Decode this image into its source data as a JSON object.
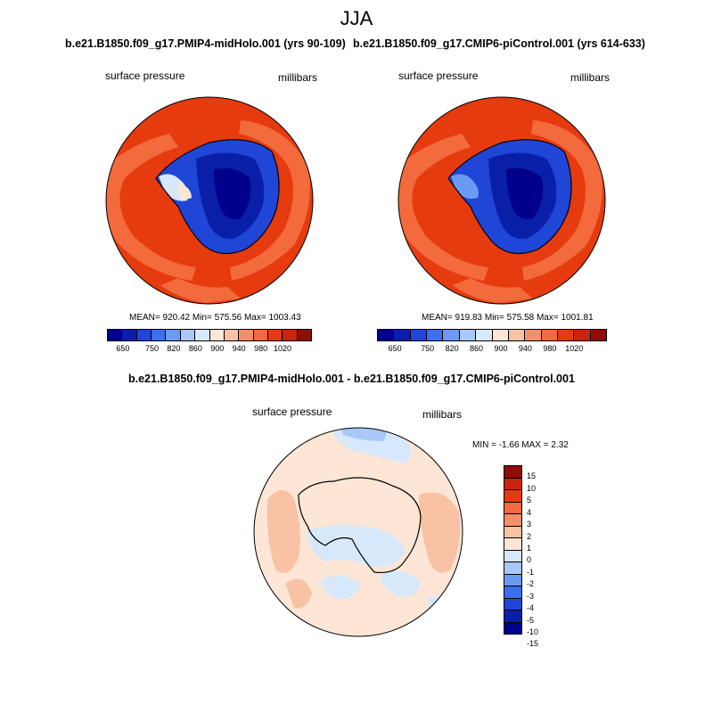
{
  "chart_data": {
    "type": "heatmap",
    "title": "JJA",
    "panels": [
      {
        "title": "b.e21.B1850.f09_g17.PMIP4-midHolo.001 (yrs 90-109)",
        "variable": "surface pressure",
        "units": "millibars",
        "stats": "MEAN= 920.42  Min= 575.56  Max= 1003.43",
        "mean": 920.42,
        "min": 575.56,
        "max": 1003.43,
        "colorbar_ticks": [
          "650",
          "750",
          "820",
          "860",
          "900",
          "940",
          "980",
          "1020"
        ]
      },
      {
        "title": "b.e21.B1850.f09_g17.CMIP6-piControl.001 (yrs 614-633)",
        "variable": "surface pressure",
        "units": "millibars",
        "stats": "MEAN= 919.83  Min= 575.58  Max= 1001.81",
        "mean": 919.83,
        "min": 575.58,
        "max": 1001.81,
        "colorbar_ticks": [
          "650",
          "750",
          "820",
          "860",
          "900",
          "940",
          "980",
          "1020"
        ]
      },
      {
        "title": "b.e21.B1850.f09_g17.PMIP4-midHolo.001 - b.e21.B1850.f09_g17.CMIP6-piControl.001",
        "variable": "surface pressure",
        "units": "millibars",
        "stats": "MIN =  -1.66 MAX =   2.32",
        "min": -1.66,
        "max": 2.32,
        "colorbar_ticks": [
          "15",
          "10",
          "5",
          "4",
          "3",
          "2",
          "1",
          "0",
          "-1",
          "-2",
          "-3",
          "-4",
          "-5",
          "-10",
          "-15"
        ]
      }
    ]
  },
  "colors": {
    "abs_palette": [
      "#00008a",
      "#0a1fa8",
      "#1f46d6",
      "#3b6ef0",
      "#6b9af5",
      "#a8c8f7",
      "#d8e8fb",
      "#fde6d6",
      "#f9c2a5",
      "#f58f6a",
      "#f36a3c",
      "#e53b0f",
      "#c9250a",
      "#8e0d05"
    ],
    "diff_palette": [
      "#8e0d05",
      "#c9250a",
      "#e53b0f",
      "#f36a3c",
      "#f58f6a",
      "#f9c2a5",
      "#fde6d6",
      "#d8e8fb",
      "#a8c8f7",
      "#6b9af5",
      "#3b6ef0",
      "#1f46d6",
      "#0a1fa8",
      "#00008a"
    ]
  }
}
